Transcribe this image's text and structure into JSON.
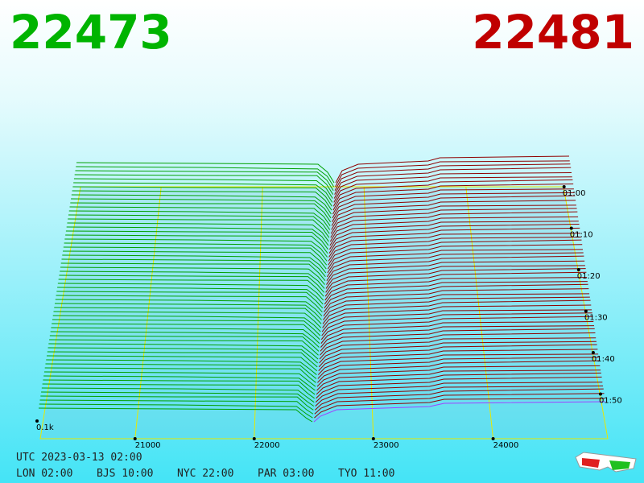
{
  "bid": "22473",
  "ask": "22481",
  "depth_label": "0.1k",
  "price_ticks": [
    "21000",
    "22000",
    "23000",
    "24000"
  ],
  "time_ticks": [
    "01:00",
    "01:10",
    "01:20",
    "01:30",
    "01:40",
    "01:50"
  ],
  "utc": "UTC 2023-03-13 02:00",
  "cities": [
    "LON 02:00",
    "BJS 10:00",
    "NYC 22:00",
    "PAR 03:00",
    "TYO 11:00"
  ]
}
